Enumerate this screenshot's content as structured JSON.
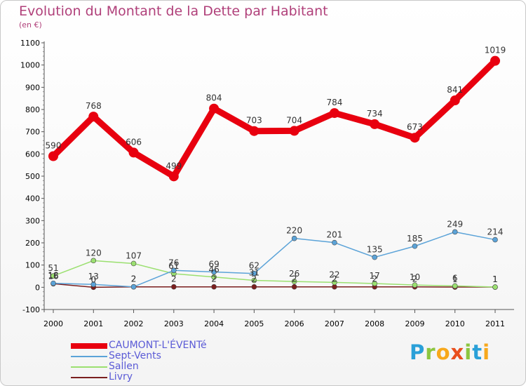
{
  "title": "Evolution du Montant de la Dette par Habitant",
  "subtitle": "(en €)",
  "brand": {
    "letters": [
      "P",
      "r",
      "o",
      "x",
      "i",
      "t",
      "i"
    ],
    "colors": [
      "#2aa0d8",
      "#8cc63f",
      "#f7a81b",
      "#e94f1d",
      "#8cc63f",
      "#2aa0d8",
      "#f7a81b"
    ]
  },
  "chart_data": {
    "type": "line",
    "x": [
      2000,
      2001,
      2002,
      2003,
      2004,
      2005,
      2006,
      2007,
      2008,
      2009,
      2010,
      2011
    ],
    "ylim": [
      -100,
      1100
    ],
    "yticks": [
      -100,
      0,
      100,
      200,
      300,
      400,
      500,
      600,
      700,
      800,
      900,
      1000,
      1100
    ],
    "grid": false,
    "legend_position": "bottom-left",
    "series": [
      {
        "name": "CAUMONT-L'ÉVENTé",
        "color": "#e8000f",
        "values": [
          590,
          768,
          606,
          499,
          804,
          703,
          704,
          784,
          734,
          673,
          841,
          1019
        ],
        "labels": [
          "590",
          "768",
          "606",
          "499",
          "804",
          "703",
          "704",
          "784",
          "734",
          "673",
          "841",
          "1019"
        ]
      },
      {
        "name": "Sept-Vents",
        "color": "#5ba3d8",
        "values": [
          18,
          13,
          2,
          76,
          69,
          62,
          220,
          201,
          135,
          185,
          249,
          214
        ],
        "labels": [
          "18",
          "13",
          "2",
          "76",
          "69",
          "62",
          "220",
          "201",
          "135",
          "185",
          "249",
          "214"
        ]
      },
      {
        "name": "Sallen",
        "color": "#9be070",
        "values": [
          51,
          120,
          107,
          61,
          46,
          31,
          26,
          22,
          17,
          10,
          6,
          1
        ],
        "labels": [
          "51",
          "120",
          "107",
          "61",
          "46",
          "31",
          "26",
          "22",
          "17",
          "10",
          "6",
          "1"
        ]
      },
      {
        "name": "Livry",
        "color": "#7a1e1e",
        "values": [
          16,
          0,
          2,
          2,
          2,
          2,
          2,
          2,
          2,
          2,
          1,
          1
        ],
        "labels": [
          "16",
          "0",
          "2",
          "2",
          "2",
          "2",
          "2",
          "2",
          "2",
          "2",
          "1",
          "1"
        ]
      }
    ]
  }
}
